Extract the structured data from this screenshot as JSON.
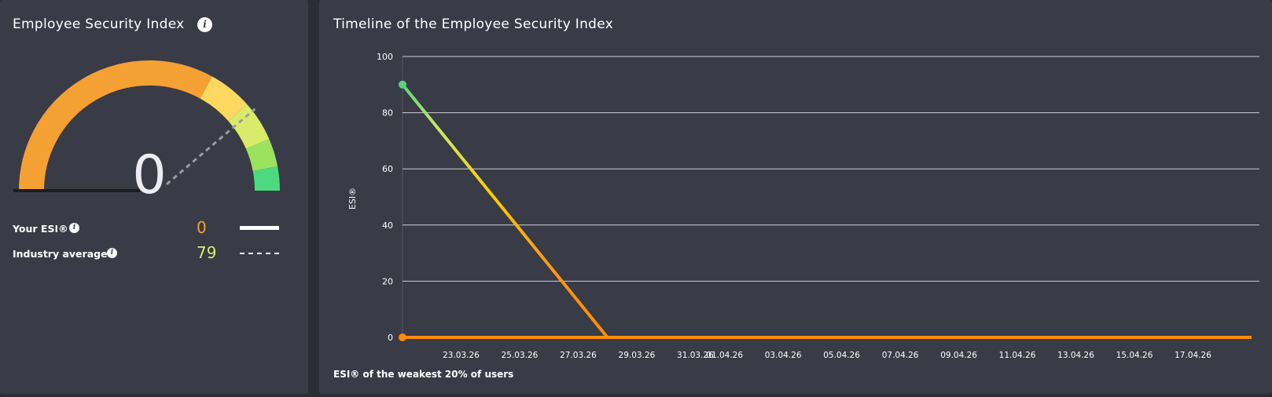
{
  "gauge_panel": {
    "title": "Employee Security Index",
    "value": 0,
    "display_value": "0",
    "max": 100,
    "industry_average_marker": 79,
    "segments": [
      {
        "from": 0,
        "to": 66,
        "color": "#f5a033"
      },
      {
        "from": 66,
        "to": 77,
        "color": "#fcd860"
      },
      {
        "from": 77,
        "to": 87,
        "color": "#d9ec6a"
      },
      {
        "from": 87,
        "to": 94,
        "color": "#9be35f"
      },
      {
        "from": 94,
        "to": 100,
        "color": "#4dd97f"
      }
    ],
    "legend": [
      {
        "label": "Your ESI®",
        "value": "0",
        "value_color": "#f5a033",
        "line": "solid"
      },
      {
        "label": "Industry average",
        "value": "79",
        "value_color": "#d9ec6a",
        "line": "dashed"
      }
    ]
  },
  "timeline_panel": {
    "title": "Timeline of the Employee Security Index",
    "note": "ESI® of the weakest 20% of users"
  },
  "chart_data": {
    "type": "line",
    "title": "Timeline of the Employee Security Index",
    "xlabel": "",
    "ylabel": "ESI®",
    "ylim": [
      0,
      100
    ],
    "yticks": [
      0,
      20,
      40,
      60,
      80,
      100
    ],
    "xticks": [
      "23.03.26",
      "25.03.26",
      "27.03.26",
      "29.03.26",
      "31.03.26",
      "01.04.26",
      "03.04.26",
      "05.04.26",
      "07.04.26",
      "09.04.26",
      "11.04.26",
      "13.04.26",
      "15.04.26",
      "17.04.26"
    ],
    "grid": true,
    "series": [
      {
        "name": "",
        "points": [
          {
            "x": "21.03.26",
            "y": 90
          },
          {
            "x": "28.03.26",
            "y": 0
          },
          {
            "x": "19.04.26",
            "y": 0
          }
        ]
      },
      {
        "name": "",
        "points": [
          {
            "x": "21.03.26",
            "y": 0
          },
          {
            "x": "19.04.26",
            "y": 0
          }
        ]
      }
    ]
  }
}
